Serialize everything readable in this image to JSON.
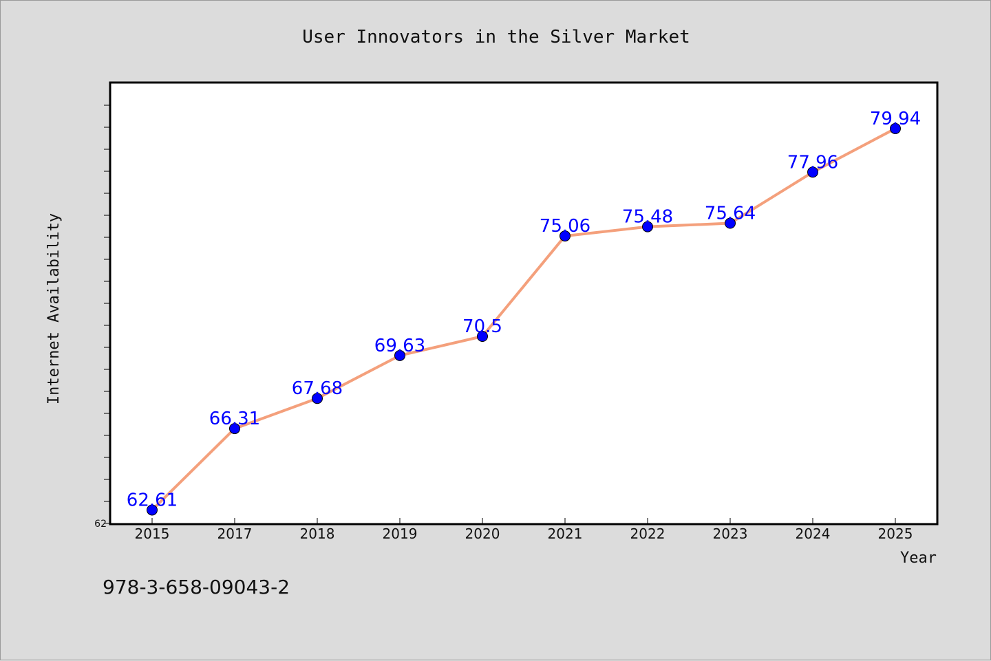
{
  "chart_data": {
    "type": "line",
    "title": "User Innovators in the Silver Market",
    "xlabel": "Year",
    "ylabel": "Internet Availability",
    "categories": [
      "2015",
      "2017",
      "2018",
      "2019",
      "2020",
      "2021",
      "2022",
      "2023",
      "2024",
      "2025"
    ],
    "values": [
      62.61,
      66.31,
      67.68,
      69.63,
      70.5,
      75.06,
      75.48,
      75.64,
      77.96,
      79.94
    ],
    "data_labels": [
      "62.61",
      "66.31",
      "67.68",
      "69.63",
      "70.5",
      "75.06",
      "75.48",
      "75.64",
      "77.96",
      "79.94"
    ],
    "y_tick_labels": [
      "62"
    ],
    "ylim": [
      62,
      82
    ],
    "grid": false,
    "legend": "none",
    "line_color": "#f4a07c",
    "marker_color": "#0000ff",
    "label_color": "#0000ff"
  },
  "footer": {
    "isbn": "978-3-658-09043-2"
  }
}
